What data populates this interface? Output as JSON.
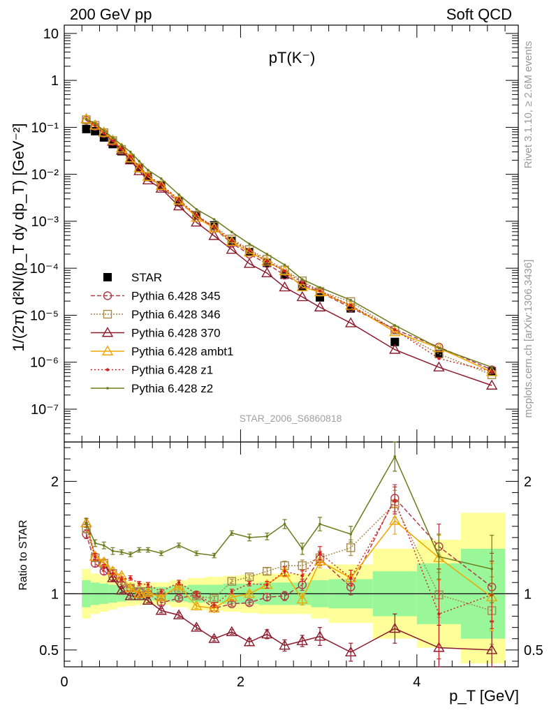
{
  "header": {
    "left": "200 GeV pp",
    "right": "Soft QCD"
  },
  "side_text": {
    "rivet": "Rivet 3.1.10, ≥ 2.6M events",
    "site": "mcplots.cern.ch [arXiv:1306.3436]"
  },
  "colors": {
    "star": "#000000",
    "p345": "#b03a48",
    "p346": "#a6894a",
    "p370": "#8b1a2b",
    "ambt1": "#f0a500",
    "z1": "#d42020",
    "z2": "#6b7a1a",
    "band_inner": "#99f799",
    "band_outer": "#ffff99"
  },
  "chart_data": [
    {
      "type": "scatter",
      "title": "pT(K⁻)",
      "watermark": "STAR_2006_S6860818",
      "ylabel": "1/(2π) d²N/(p_T dy dp_T) [GeV⁻²]",
      "yscale": "log",
      "xlim": [
        0,
        5.15
      ],
      "ylim": [
        2e-08,
        15
      ],
      "x": [
        0.25,
        0.35,
        0.45,
        0.55,
        0.65,
        0.75,
        0.85,
        0.95,
        1.1,
        1.3,
        1.5,
        1.7,
        1.9,
        2.1,
        2.3,
        2.5,
        2.7,
        2.9,
        3.25,
        3.75,
        4.25,
        4.85
      ],
      "series": [
        {
          "name": "STAR",
          "key": "star",
          "values": [
            0.092,
            0.083,
            0.061,
            0.044,
            0.031,
            0.021,
            0.0135,
            0.0088,
            0.0059,
            0.0026,
            0.00135,
            0.00082,
            0.00038,
            0.00022,
            0.00013,
            7.3e-05,
            4.2e-05,
            2.4e-05,
            1.4e-05,
            2.7e-06,
            1.5e-06,
            6.4e-07
          ]
        },
        {
          "name": "Pythia 6.428 345",
          "key": "p345",
          "values": [
            0.14,
            0.105,
            0.074,
            0.05,
            0.033,
            0.022,
            0.0137,
            0.0088,
            0.0054,
            0.0025,
            0.00133,
            0.00071,
            0.00034,
            0.0002,
            0.000125,
            7.1e-05,
            4.5e-05,
            3.1e-05,
            1.45e-05,
            5e-06,
            2.1e-06,
            6.9e-07
          ]
        },
        {
          "name": "Pythia 6.428 346",
          "key": "p346",
          "values": [
            0.145,
            0.11,
            0.077,
            0.052,
            0.034,
            0.022,
            0.0138,
            0.009,
            0.0058,
            0.0027,
            0.00133,
            0.00078,
            0.00042,
            0.00025,
            0.000155,
            9.2e-05,
            5.4e-05,
            3.2e-05,
            1.95e-05,
            4.8e-06,
            1.5e-06,
            5.4e-07
          ]
        },
        {
          "name": "Pythia 6.428 370",
          "key": "p370",
          "values": [
            0.15,
            0.11,
            0.078,
            0.05,
            0.032,
            0.02,
            0.0118,
            0.0075,
            0.005,
            0.0021,
            0.00095,
            0.00049,
            0.00025,
            0.000125,
            7.9e-05,
            3.95e-05,
            2.45e-05,
            1.48e-05,
            6.8e-06,
            1.85e-06,
            7.8e-07,
            3.2e-07
          ]
        },
        {
          "name": "Pythia 6.428 ambt1",
          "key": "ambt1",
          "values": [
            0.15,
            0.11,
            0.078,
            0.053,
            0.036,
            0.022,
            0.0135,
            0.0089,
            0.0057,
            0.0028,
            0.0012,
            0.00071,
            0.00037,
            0.00022,
            0.00014,
            8.7e-05,
            4e-05,
            3.1e-05,
            1.6e-05,
            4.4e-06,
            2e-06,
            6.2e-07
          ]
        },
        {
          "name": "Pythia 6.428 z1",
          "key": "z1",
          "values": [
            0.15,
            0.11,
            0.075,
            0.052,
            0.035,
            0.024,
            0.0147,
            0.0095,
            0.006,
            0.0029,
            0.00135,
            0.00074,
            0.00039,
            0.00024,
            0.00014,
            8.8e-05,
            4.9e-05,
            3.3e-05,
            1.6e-05,
            4.9e-06,
            1.2e-06,
            6.3e-07
          ]
        },
        {
          "name": "Pythia 6.428 z2",
          "key": "z2",
          "values": [
            0.15,
            0.12,
            0.085,
            0.06,
            0.042,
            0.03,
            0.019,
            0.0123,
            0.0081,
            0.0037,
            0.0018,
            0.0011,
            0.00059,
            0.00033,
            0.0002,
            0.000118,
            5.8e-05,
            3.9e-05,
            2.1e-05,
            6.1e-06,
            2e-06,
            7.8e-07
          ]
        }
      ],
      "y_ticks": [
        "10⁻⁷",
        "10⁻⁶",
        "10⁻⁵",
        "10⁻⁴",
        "10⁻³",
        "10⁻²",
        "10⁻¹",
        "1",
        "10"
      ],
      "legend_position": "left"
    },
    {
      "type": "line",
      "ylabel": "Ratio to STAR",
      "xlabel": "p_T [GeV]",
      "xlim": [
        0,
        5.15
      ],
      "ylim": [
        0.35,
        2.35
      ],
      "x_ticks": [
        "0",
        "2",
        "4"
      ],
      "y_ticks": [
        "0.5",
        "1",
        "2"
      ],
      "x": [
        0.25,
        0.35,
        0.45,
        0.55,
        0.65,
        0.75,
        0.85,
        0.95,
        1.1,
        1.3,
        1.5,
        1.7,
        1.9,
        2.1,
        2.3,
        2.5,
        2.7,
        2.9,
        3.25,
        3.75,
        4.25,
        4.85
      ],
      "band_edges": [
        0.2,
        0.3,
        0.4,
        0.5,
        0.6,
        0.7,
        0.8,
        0.9,
        1.0,
        1.2,
        1.4,
        1.6,
        1.8,
        2.0,
        2.2,
        2.4,
        2.6,
        2.8,
        3.0,
        3.5,
        4.0,
        4.5,
        5.0
      ],
      "band_inner": [
        0.12,
        0.1,
        0.09,
        0.08,
        0.07,
        0.06,
        0.06,
        0.06,
        0.06,
        0.07,
        0.08,
        0.08,
        0.09,
        0.09,
        0.1,
        0.1,
        0.1,
        0.12,
        0.13,
        0.2,
        0.27,
        0.4
      ],
      "band_outer": [
        0.22,
        0.18,
        0.16,
        0.14,
        0.12,
        0.11,
        0.1,
        0.1,
        0.1,
        0.12,
        0.14,
        0.15,
        0.16,
        0.17,
        0.18,
        0.18,
        0.18,
        0.22,
        0.26,
        0.4,
        0.48,
        0.72
      ],
      "series": [
        {
          "name": "Pythia 6.428 345",
          "key": "p345",
          "values": [
            1.53,
            1.27,
            1.2,
            1.15,
            1.08,
            1.05,
            1.02,
            1.0,
            0.92,
            0.96,
            0.99,
            0.87,
            0.91,
            0.92,
            0.97,
            0.98,
            1.08,
            1.31,
            1.06,
            1.85,
            1.42,
            1.06
          ],
          "errors": [
            0.04,
            0.03,
            0.03,
            0.03,
            0.02,
            0.02,
            0.02,
            0.02,
            0.02,
            0.02,
            0.02,
            0.02,
            0.02,
            0.02,
            0.03,
            0.04,
            0.05,
            0.06,
            0.07,
            0.12,
            0.2,
            0.3
          ]
        },
        {
          "name": "Pythia 6.428 346",
          "key": "p346",
          "values": [
            1.58,
            1.32,
            1.27,
            1.18,
            1.1,
            1.05,
            1.02,
            1.02,
            0.98,
            1.04,
            0.98,
            0.96,
            1.11,
            1.15,
            1.2,
            1.25,
            1.25,
            1.32,
            1.41,
            1.8,
            0.99,
            0.85
          ],
          "errors": [
            0.04,
            0.03,
            0.03,
            0.03,
            0.02,
            0.02,
            0.02,
            0.02,
            0.02,
            0.02,
            0.02,
            0.02,
            0.02,
            0.02,
            0.03,
            0.04,
            0.05,
            0.06,
            0.07,
            0.12,
            0.2,
            0.3
          ]
        },
        {
          "name": "Pythia 6.428 370",
          "key": "p370",
          "values": [
            1.63,
            1.33,
            1.28,
            1.14,
            1.03,
            0.98,
            0.98,
            0.94,
            0.85,
            0.81,
            0.7,
            0.6,
            0.66,
            0.57,
            0.64,
            0.54,
            0.58,
            0.62,
            0.48,
            0.69,
            0.52,
            0.5
          ],
          "errors": [
            0.04,
            0.03,
            0.03,
            0.03,
            0.02,
            0.02,
            0.02,
            0.02,
            0.02,
            0.02,
            0.02,
            0.02,
            0.02,
            0.03,
            0.04,
            0.05,
            0.05,
            0.08,
            0.08,
            0.13,
            0.2,
            0.25
          ]
        },
        {
          "name": "Pythia 6.428 ambt1",
          "key": "ambt1",
          "values": [
            1.63,
            1.33,
            1.28,
            1.2,
            1.16,
            1.05,
            1.0,
            1.01,
            0.97,
            1.07,
            0.89,
            0.87,
            0.97,
            1.0,
            1.08,
            1.19,
            0.95,
            1.29,
            1.14,
            1.65,
            1.32,
            0.97
          ],
          "errors": [
            0.04,
            0.03,
            0.03,
            0.03,
            0.02,
            0.02,
            0.02,
            0.02,
            0.02,
            0.02,
            0.02,
            0.02,
            0.02,
            0.02,
            0.03,
            0.04,
            0.05,
            0.06,
            0.07,
            0.12,
            0.2,
            0.3
          ]
        },
        {
          "name": "Pythia 6.428 z1",
          "key": "z1",
          "values": [
            1.63,
            1.33,
            1.23,
            1.18,
            1.13,
            1.14,
            1.09,
            1.08,
            1.02,
            1.1,
            1.0,
            0.9,
            1.02,
            1.09,
            1.08,
            1.2,
            1.16,
            1.36,
            1.14,
            1.83,
            0.82,
            0.99
          ],
          "errors": [
            0.04,
            0.03,
            0.03,
            0.03,
            0.02,
            0.02,
            0.02,
            0.02,
            0.02,
            0.02,
            0.02,
            0.02,
            0.02,
            0.02,
            0.03,
            0.04,
            0.05,
            0.06,
            0.07,
            0.12,
            0.4,
            0.3
          ]
        },
        {
          "name": "Pythia 6.428 z2",
          "key": "z2",
          "values": [
            1.63,
            1.45,
            1.43,
            1.38,
            1.37,
            1.35,
            1.39,
            1.39,
            1.36,
            1.43,
            1.36,
            1.34,
            1.54,
            1.5,
            1.51,
            1.62,
            1.4,
            1.62,
            1.53,
            2.22,
            1.33,
            1.22
          ],
          "errors": [
            0.04,
            0.03,
            0.03,
            0.03,
            0.02,
            0.02,
            0.02,
            0.02,
            0.02,
            0.02,
            0.02,
            0.02,
            0.02,
            0.03,
            0.03,
            0.04,
            0.05,
            0.06,
            0.07,
            0.13,
            0.2,
            0.3
          ]
        }
      ]
    }
  ]
}
